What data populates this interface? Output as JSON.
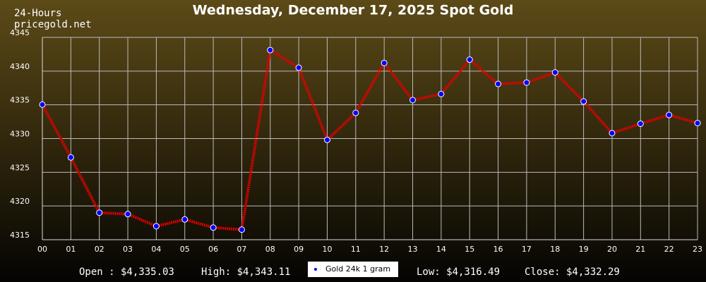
{
  "chart_data": {
    "type": "line",
    "title": "Wednesday, December 17, 2025 Spot Gold",
    "subtitle": "24-Hours",
    "source": "pricegold.net",
    "categories": [
      "00",
      "01",
      "02",
      "03",
      "04",
      "05",
      "06",
      "07",
      "08",
      "09",
      "10",
      "11",
      "12",
      "13",
      "14",
      "15",
      "16",
      "17",
      "18",
      "19",
      "20",
      "21",
      "22",
      "23"
    ],
    "series": [
      {
        "name": "Gold 24k 1 gram",
        "color": "#e00000",
        "marker_color": "#0000ff",
        "values": [
          4335.03,
          4327.2,
          4319.0,
          4318.8,
          4317.0,
          4318.0,
          4316.8,
          4316.49,
          4343.11,
          4340.5,
          4329.8,
          4333.8,
          4341.2,
          4335.7,
          4336.6,
          4341.7,
          4338.1,
          4338.3,
          4339.8,
          4335.5,
          4330.8,
          4332.2,
          4333.5,
          4332.29
        ]
      }
    ],
    "ylim": [
      4315,
      4345
    ],
    "yticks": [
      4315,
      4320,
      4325,
      4330,
      4335,
      4340,
      4345
    ],
    "grid": true,
    "summary": [
      "Open : $4,335.03",
      "High: $4,343.11",
      "Low: $4,316.49",
      "Close: $4,332.29"
    ]
  }
}
